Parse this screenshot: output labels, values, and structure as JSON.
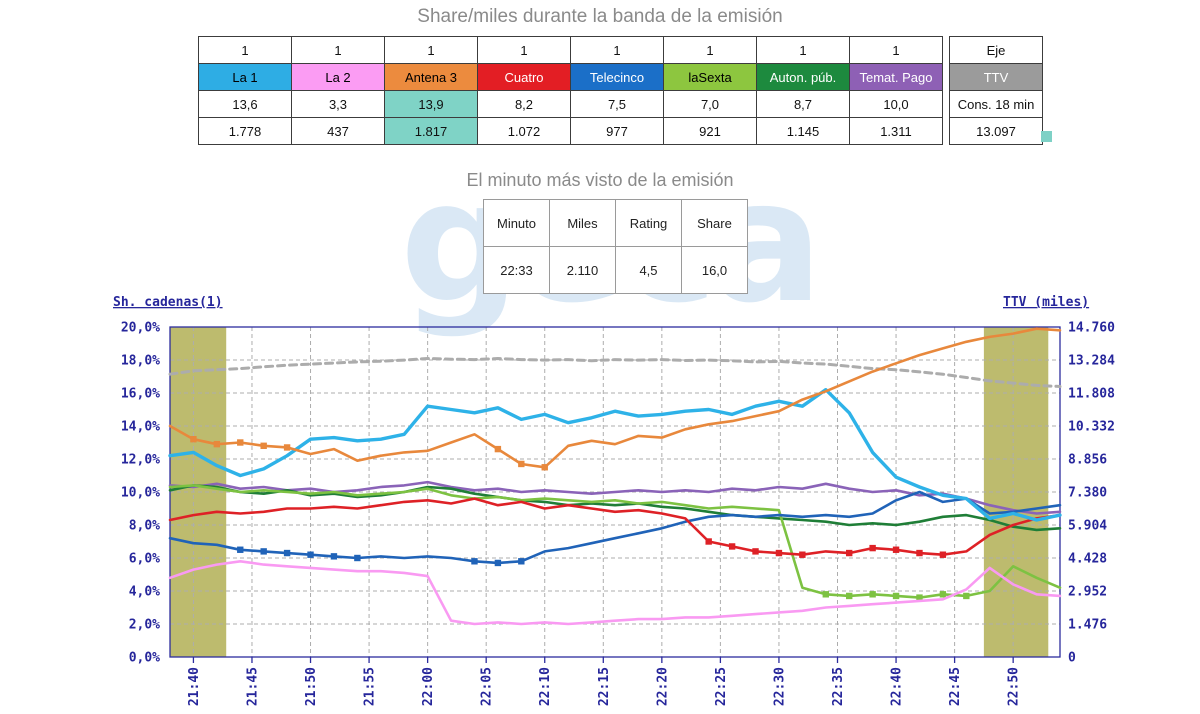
{
  "titles": {
    "band": "Share/miles durante la banda de la emisión",
    "minute": "El minuto más visto de la emisión"
  },
  "watermark": "geca",
  "band_table": {
    "highlight_color": "#7fd3c6",
    "channels": [
      {
        "ones": "1",
        "name": "La 1",
        "color": "#2eade4",
        "text_color": "#000000",
        "share": "13,6",
        "miles": "1.778",
        "highlight": false
      },
      {
        "ones": "1",
        "name": "La 2",
        "color": "#fb9cf3",
        "text_color": "#000000",
        "share": "3,3",
        "miles": "437",
        "highlight": false
      },
      {
        "ones": "1",
        "name": "Antena 3",
        "color": "#ec8b3e",
        "text_color": "#000000",
        "share": "13,9",
        "miles": "1.817",
        "highlight": true
      },
      {
        "ones": "1",
        "name": "Cuatro",
        "color": "#e31e24",
        "text_color": "#ffffff",
        "share": "8,2",
        "miles": "1.072",
        "highlight": false
      },
      {
        "ones": "1",
        "name": "Telecinco",
        "color": "#1b6fc8",
        "text_color": "#ffffff",
        "share": "7,5",
        "miles": "977",
        "highlight": false
      },
      {
        "ones": "1",
        "name": "laSexta",
        "color": "#8dc63f",
        "text_color": "#000000",
        "share": "7,0",
        "miles": "921",
        "highlight": false
      },
      {
        "ones": "1",
        "name": "Auton. púb.",
        "color": "#1d8a3e",
        "text_color": "#ffffff",
        "share": "8,7",
        "miles": "1.145",
        "highlight": false
      },
      {
        "ones": "1",
        "name": "Temat. Pago",
        "color": "#8e60b5",
        "text_color": "#ffffff",
        "share": "10,0",
        "miles": "1.311",
        "highlight": false
      }
    ],
    "eje": {
      "axis_header": "Eje",
      "name": "TTV",
      "color": "#9b9b9b",
      "text_color": "#ffffff",
      "share_label": "Cons. 18 min",
      "total_miles": "13.097"
    }
  },
  "minute_table": {
    "headers": [
      "Minuto",
      "Miles",
      "Rating",
      "Share"
    ],
    "values": [
      "22:33",
      "2.110",
      "4,5",
      "16,0"
    ]
  },
  "chart_data": {
    "type": "line",
    "left_axis": {
      "title": "Sh. cadenas(1)",
      "max": 20,
      "tick_values": [
        20,
        18,
        16,
        14,
        12,
        10,
        8,
        6,
        4,
        2,
        0
      ],
      "tick_labels": [
        "20,0%",
        "18,0%",
        "16,0%",
        "14,0%",
        "12,0%",
        "10,0%",
        "8,0%",
        "6,0%",
        "4,0%",
        "2,0%",
        "0,0%"
      ]
    },
    "right_axis": {
      "title": "TTV (miles)",
      "max": 14760,
      "tick_values": [
        14760,
        13284,
        11808,
        10332,
        8856,
        7380,
        5904,
        4428,
        2952,
        1476,
        0
      ],
      "tick_labels": [
        "14.760",
        "13.284",
        "11.808",
        "10.332",
        "8.856",
        "7.380",
        "5.904",
        "4.428",
        "2.952",
        "1.476",
        "0"
      ]
    },
    "x_axis": {
      "start_time": "21:38",
      "duration_min": 76,
      "tick_minutes": [
        2,
        7,
        12,
        17,
        22,
        27,
        32,
        37,
        42,
        47,
        52,
        57,
        62,
        67,
        72
      ],
      "tick_labels": [
        "21:40",
        "21:45",
        "21:50",
        "21:55",
        "22:00",
        "22:05",
        "22:10",
        "22:15",
        "22:20",
        "22:25",
        "22:30",
        "22:35",
        "22:40",
        "22:45",
        "22:50"
      ]
    },
    "bands": [
      {
        "from_min": 0,
        "to_min": 4.8
      },
      {
        "from_min": 69.5,
        "to_min": 75
      }
    ],
    "band_color": "#bdbb6e",
    "sample_minutes": [
      0,
      2,
      4,
      6,
      8,
      10,
      12,
      14,
      16,
      18,
      20,
      22,
      24,
      26,
      28,
      30,
      32,
      34,
      36,
      38,
      40,
      42,
      44,
      46,
      48,
      50,
      52,
      54,
      56,
      58,
      60,
      62,
      64,
      66,
      68,
      70,
      72,
      74,
      76
    ],
    "series": [
      {
        "name": "TTV",
        "axis": "right",
        "color": "#acacac",
        "width": 3,
        "dashed": true,
        "values": [
          12650,
          12800,
          12850,
          12900,
          12980,
          13050,
          13100,
          13150,
          13200,
          13230,
          13280,
          13350,
          13320,
          13300,
          13350,
          13300,
          13280,
          13300,
          13250,
          13300,
          13280,
          13300,
          13260,
          13280,
          13250,
          13200,
          13220,
          13150,
          13100,
          13000,
          12900,
          12850,
          12750,
          12650,
          12500,
          12350,
          12250,
          12150,
          12100
        ]
      },
      {
        "name": "Temat. Pago",
        "axis": "left",
        "color": "#8a63b8",
        "width": 2.6,
        "values": [
          10.4,
          10.3,
          10.5,
          10.2,
          10.3,
          10.1,
          10.2,
          10.0,
          10.1,
          10.3,
          10.4,
          10.6,
          10.3,
          10.1,
          10.2,
          10.0,
          10.1,
          10.0,
          9.9,
          10.0,
          10.1,
          10.0,
          10.1,
          10.0,
          10.2,
          10.1,
          10.3,
          10.2,
          10.5,
          10.2,
          10.0,
          10.1,
          9.8,
          9.9,
          9.6,
          9.2,
          8.9,
          8.7,
          8.8
        ]
      },
      {
        "name": "Auton. púb.",
        "axis": "left",
        "color": "#1f7e37",
        "width": 2.6,
        "values": [
          10.1,
          10.4,
          10.3,
          10.0,
          9.9,
          10.1,
          9.8,
          9.9,
          9.7,
          9.8,
          10.0,
          10.3,
          10.2,
          9.9,
          9.7,
          9.5,
          9.4,
          9.2,
          9.3,
          9.2,
          9.3,
          9.1,
          9.0,
          8.8,
          8.6,
          8.5,
          8.4,
          8.3,
          8.2,
          8.0,
          8.1,
          8.0,
          8.2,
          8.5,
          8.6,
          8.3,
          7.9,
          7.7,
          7.8
        ]
      },
      {
        "name": "laSexta",
        "axis": "left",
        "color": "#7dc242",
        "width": 2.6,
        "markers": [
          56,
          58,
          60,
          62,
          64,
          66,
          68
        ],
        "values": [
          10.3,
          10.4,
          10.2,
          10.0,
          10.1,
          10.0,
          9.9,
          10.0,
          9.8,
          9.9,
          10.0,
          10.2,
          9.8,
          9.6,
          9.7,
          9.5,
          9.6,
          9.5,
          9.4,
          9.5,
          9.3,
          9.4,
          9.2,
          9.0,
          9.1,
          9.0,
          8.9,
          4.2,
          3.8,
          3.7,
          3.8,
          3.7,
          3.6,
          3.8,
          3.7,
          4.0,
          5.5,
          4.8,
          4.2
        ]
      },
      {
        "name": "Telecinco",
        "axis": "left",
        "color": "#2063b8",
        "width": 2.6,
        "markers": [
          6,
          8,
          10,
          12,
          14,
          16,
          26,
          28,
          30
        ],
        "values": [
          7.2,
          6.9,
          6.8,
          6.5,
          6.4,
          6.3,
          6.2,
          6.1,
          6.0,
          6.1,
          6.0,
          6.1,
          6.0,
          5.8,
          5.7,
          5.8,
          6.4,
          6.6,
          6.9,
          7.2,
          7.5,
          7.8,
          8.2,
          8.5,
          8.6,
          8.5,
          8.6,
          8.5,
          8.6,
          8.5,
          8.7,
          9.5,
          10.0,
          9.4,
          9.6,
          8.7,
          8.8,
          9.0,
          9.2
        ]
      },
      {
        "name": "Cuatro",
        "axis": "left",
        "color": "#de2126",
        "width": 2.6,
        "markers": [
          46,
          48,
          50,
          52,
          54,
          58,
          60,
          62,
          64,
          66
        ],
        "values": [
          8.3,
          8.6,
          8.8,
          8.7,
          8.8,
          9.0,
          9.0,
          9.1,
          9.0,
          9.2,
          9.4,
          9.5,
          9.3,
          9.6,
          9.2,
          9.4,
          9.0,
          9.2,
          9.0,
          8.8,
          8.9,
          8.7,
          8.4,
          7.0,
          6.7,
          6.4,
          6.3,
          6.2,
          6.4,
          6.3,
          6.6,
          6.5,
          6.3,
          6.2,
          6.4,
          7.4,
          8.0,
          8.4,
          8.6
        ]
      },
      {
        "name": "La 2",
        "axis": "left",
        "color": "#f99af2",
        "width": 2.6,
        "values": [
          4.8,
          5.3,
          5.6,
          5.8,
          5.6,
          5.5,
          5.4,
          5.3,
          5.2,
          5.2,
          5.1,
          4.9,
          2.2,
          2.0,
          2.1,
          2.0,
          2.1,
          2.0,
          2.1,
          2.2,
          2.3,
          2.3,
          2.4,
          2.4,
          2.5,
          2.6,
          2.7,
          2.8,
          3.0,
          3.1,
          3.2,
          3.3,
          3.4,
          3.5,
          4.1,
          5.4,
          4.4,
          3.8,
          3.7
        ]
      },
      {
        "name": "La 1",
        "axis": "left",
        "color": "#2eb2e8",
        "width": 3.4,
        "values": [
          12.2,
          12.4,
          11.6,
          11.0,
          11.4,
          12.2,
          13.2,
          13.3,
          13.1,
          13.2,
          13.5,
          15.2,
          15.0,
          14.8,
          15.1,
          14.4,
          14.7,
          14.2,
          14.5,
          14.9,
          14.6,
          14.7,
          14.9,
          15.0,
          14.7,
          15.2,
          15.5,
          15.2,
          16.2,
          14.8,
          12.4,
          10.9,
          10.3,
          9.8,
          9.6,
          8.4,
          8.7,
          8.3,
          8.6
        ]
      },
      {
        "name": "Antena 3",
        "axis": "left",
        "color": "#e8883c",
        "width": 2.6,
        "markers": [
          2,
          4,
          6,
          8,
          10,
          28,
          30,
          32
        ],
        "values": [
          14.0,
          13.2,
          12.9,
          13.0,
          12.8,
          12.7,
          12.3,
          12.6,
          11.9,
          12.2,
          12.4,
          12.5,
          13.0,
          13.5,
          12.6,
          11.7,
          11.5,
          12.8,
          13.1,
          12.9,
          13.4,
          13.3,
          13.8,
          14.1,
          14.3,
          14.6,
          14.9,
          15.6,
          16.1,
          16.7,
          17.3,
          17.8,
          18.3,
          18.7,
          19.1,
          19.4,
          19.6,
          19.9,
          19.8
        ]
      }
    ]
  }
}
